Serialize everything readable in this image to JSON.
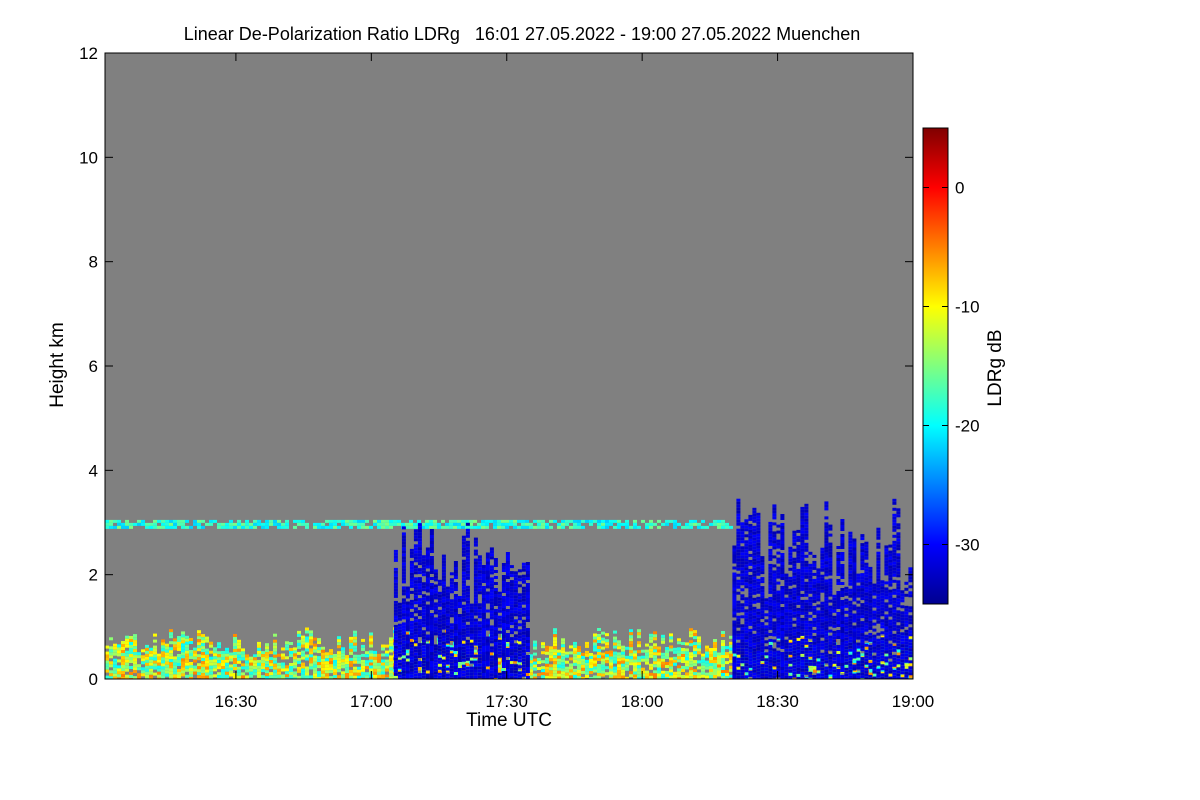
{
  "chart_data": {
    "type": "heatmap",
    "title": "Linear De-Polarization Ratio LDRg   16:01 27.05.2022 - 19:00 27.05.2022 Muenchen",
    "xlabel": "Time UTC",
    "ylabel": "Height km",
    "x_ticks": [
      "16:30",
      "17:00",
      "17:30",
      "18:00",
      "18:30",
      "19:00"
    ],
    "y_ticks": [
      "0",
      "2",
      "4",
      "6",
      "8",
      "10",
      "12"
    ],
    "xlim": [
      "16:01",
      "19:00"
    ],
    "ylim": [
      0,
      12
    ],
    "colorbar": {
      "label": "LDRg dB",
      "range": [
        -35,
        5
      ],
      "ticks": [
        "0",
        "-10",
        "-20",
        "-30"
      ],
      "colormap": "jet"
    },
    "no_data_color": "#808080",
    "features": [
      {
        "name": "Aerosol layer",
        "x_range": [
          "16:01",
          "19:00"
        ],
        "height_km": [
          0.0,
          1.0
        ],
        "ldrg_db": [
          -20,
          -5
        ]
      },
      {
        "name": "Cloud top layer",
        "x_range": [
          "16:01",
          "18:20"
        ],
        "height_km": [
          2.9,
          3.05
        ],
        "ldrg_db": [
          -22,
          -15
        ]
      },
      {
        "name": "Rain streaks",
        "x_range": [
          "17:05",
          "17:35"
        ],
        "height_km": [
          0.0,
          3.0
        ],
        "ldrg_db": [
          -33,
          -30
        ]
      },
      {
        "name": "Cloud system",
        "x_range": [
          "18:20",
          "19:00"
        ],
        "height_km": [
          0.0,
          3.5
        ],
        "ldrg_db": [
          -33,
          -30
        ]
      }
    ]
  }
}
